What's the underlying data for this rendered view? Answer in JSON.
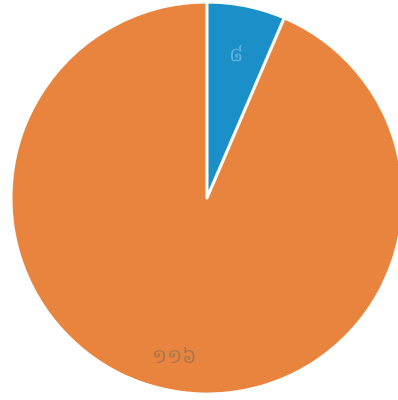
{
  "chart_data": {
    "type": "pie",
    "slices": [
      {
        "label": "៨",
        "value": 8,
        "color": "#1b8fc8",
        "label_color": "#5fb0dc"
      },
      {
        "label": "១១៦",
        "value": 116,
        "color": "#e8843d",
        "label_color": "#a7764f"
      }
    ],
    "title": "",
    "legend": "none",
    "background": "#ffffff",
    "edge_color": "#ffffff"
  }
}
